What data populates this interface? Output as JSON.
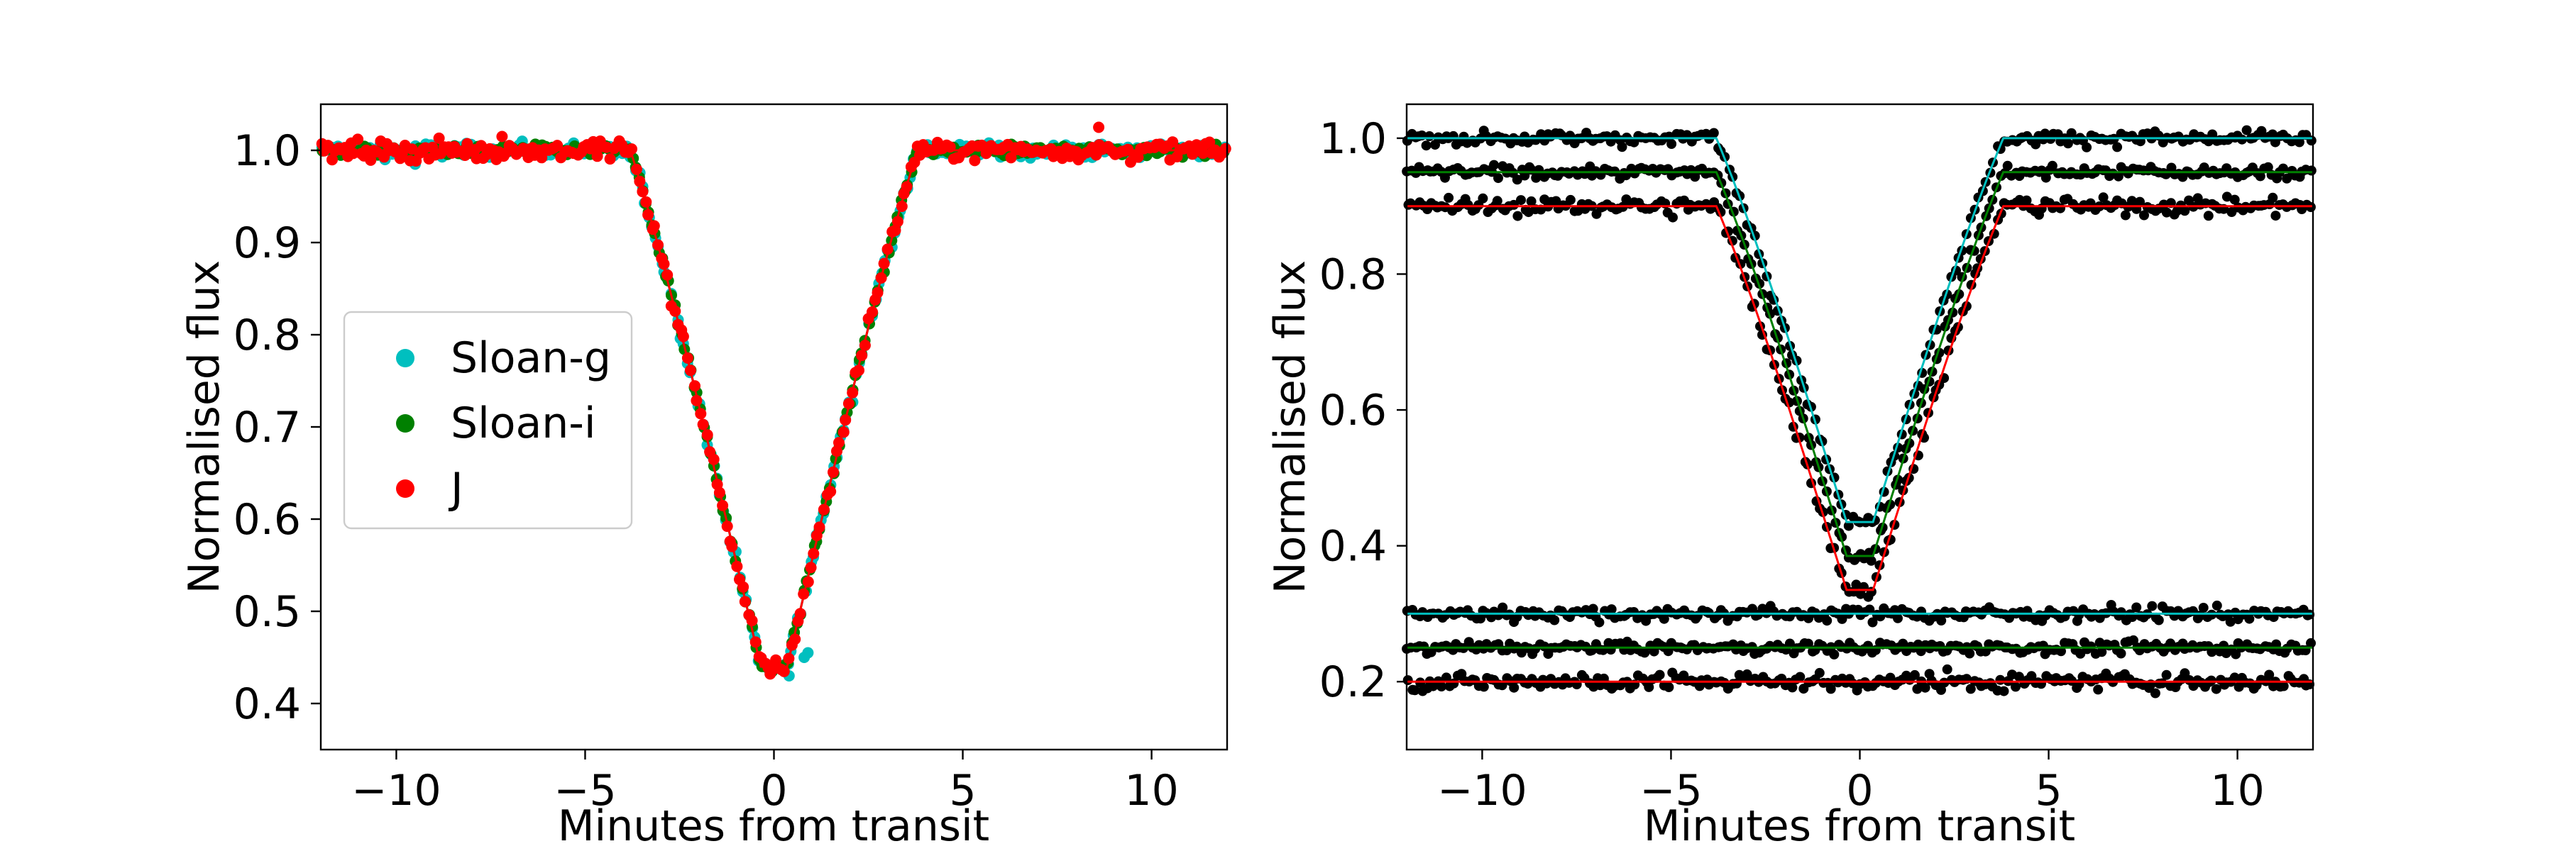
{
  "figure": {
    "background": "#ffffff"
  },
  "chart_data": [
    {
      "type": "scatter",
      "title": "",
      "xlabel": "Minutes from transit",
      "ylabel": "Normalised flux",
      "xlim": [
        -12,
        12
      ],
      "ylim": [
        0.35,
        1.05
      ],
      "xticks": [
        -10,
        -5,
        0,
        5,
        10
      ],
      "xtick_labels": [
        "−10",
        "−5",
        "0",
        "5",
        "10"
      ],
      "yticks": [
        0.4,
        0.5,
        0.6,
        0.7,
        0.8,
        0.9,
        1.0
      ],
      "ytick_labels": [
        "0.4",
        "0.5",
        "0.6",
        "0.7",
        "0.8",
        "0.9",
        "1.0"
      ],
      "grid": false,
      "legend": {
        "placement": "center-left"
      },
      "series": [
        {
          "name": "Sloan-g",
          "color": "#00bfbf",
          "model_color": "#00bfbf",
          "depth": 0.56,
          "noise": 0.006,
          "highlighted": [
            {
              "x": 0.4,
              "y": 0.43
            },
            {
              "x": 0.8,
              "y": 0.45
            },
            {
              "x": 0.9,
              "y": 0.455
            },
            {
              "x": -9.5,
              "y": 0.985
            },
            {
              "x": -10.3,
              "y": 0.99
            }
          ]
        },
        {
          "name": "Sloan-i",
          "color": "#008000",
          "model_color": "#008000",
          "depth": 0.56,
          "noise": 0.004,
          "highlighted": []
        },
        {
          "name": "J",
          "color": "#ff0000",
          "model_color": "#ff0000",
          "depth": 0.56,
          "noise": 0.007,
          "highlighted": [
            {
              "x": 8.6,
              "y": 1.025
            },
            {
              "x": -7.2,
              "y": 1.015
            },
            {
              "x": -4.6,
              "y": 1.01
            },
            {
              "x": -0.1,
              "y": 0.432
            }
          ]
        }
      ],
      "transit": {
        "ingress_start": -3.8,
        "egress_end": 3.8,
        "flat_width": 0.35
      }
    },
    {
      "type": "scatter",
      "title": "",
      "xlabel": "Minutes from transit",
      "ylabel": "Normalised flux",
      "xlim": [
        -12,
        12
      ],
      "ylim": [
        0.1,
        1.05
      ],
      "xticks": [
        -10,
        -5,
        0,
        5,
        10
      ],
      "xtick_labels": [
        "−10",
        "−5",
        "0",
        "5",
        "10"
      ],
      "yticks": [
        0.2,
        0.4,
        0.6,
        0.8,
        1.0
      ],
      "ytick_labels": [
        "0.2",
        "0.4",
        "0.6",
        "0.8",
        "1.0"
      ],
      "grid": false,
      "point_color": "#000000",
      "series": [
        {
          "color": "#00bfbf",
          "kind": "transit",
          "baseline": 1.0,
          "depth": 0.565,
          "noise": 0.007
        },
        {
          "color": "#008000",
          "kind": "transit",
          "baseline": 0.95,
          "depth": 0.565,
          "noise": 0.006
        },
        {
          "color": "#ff0000",
          "kind": "transit",
          "baseline": 0.9,
          "depth": 0.565,
          "noise": 0.009
        },
        {
          "color": "#00bfbf",
          "kind": "residual",
          "baseline": 0.3,
          "noise": 0.007
        },
        {
          "color": "#008000",
          "kind": "residual",
          "baseline": 0.25,
          "noise": 0.006
        },
        {
          "color": "#ff0000",
          "kind": "residual",
          "baseline": 0.2,
          "noise": 0.009
        }
      ],
      "transit": {
        "ingress_start": -3.8,
        "egress_end": 3.8,
        "flat_width": 0.35
      }
    }
  ]
}
